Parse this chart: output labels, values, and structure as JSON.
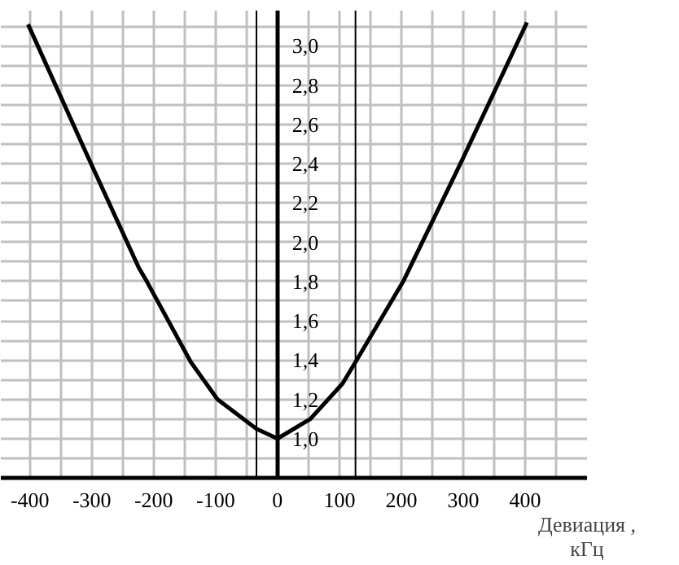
{
  "chart_data": {
    "type": "line",
    "xlabel": "Девиация ,\nкГц",
    "series": [
      {
        "color": "#000000",
        "x": [
          -403,
          -307,
          -224,
          -211,
          -140,
          -97,
          -34,
          0,
          53,
          105,
          126,
          203,
          297,
          403
        ],
        "values": [
          3.11,
          2.44,
          1.87,
          1.8,
          1.39,
          1.2,
          1.05,
          1.0,
          1.1,
          1.28,
          1.39,
          1.8,
          2.41,
          3.12
        ]
      }
    ],
    "xlim": [
      -447,
      500
    ],
    "ylim": [
      0.8,
      3.18
    ],
    "xticks": [
      -400,
      {
        "value": -350,
        "label": null
      },
      -300,
      {
        "value": -250,
        "label": null
      },
      -200,
      {
        "value": -150,
        "label": null
      },
      -100,
      {
        "value": -50,
        "label": null
      },
      0,
      {
        "value": 50,
        "label": null
      },
      100,
      {
        "value": 150,
        "label": null
      },
      200,
      {
        "value": 250,
        "label": null
      },
      300,
      {
        "value": 350,
        "label": null
      },
      400,
      {
        "value": 450,
        "label": null
      }
    ],
    "yticks": [
      {
        "value": 0.9,
        "label": null
      },
      {
        "value": 1.0,
        "label": "1,0"
      },
      {
        "value": 1.1,
        "label": null
      },
      {
        "value": 1.2,
        "label": "1,2"
      },
      {
        "value": 1.3,
        "label": null
      },
      {
        "value": 1.4,
        "label": "1,4"
      },
      {
        "value": 1.5,
        "label": null
      },
      {
        "value": 1.6,
        "label": "1,6"
      },
      {
        "value": 1.7,
        "label": null
      },
      {
        "value": 1.8,
        "label": "1,8"
      },
      {
        "value": 1.9,
        "label": null
      },
      {
        "value": 2.0,
        "label": "2,0"
      },
      {
        "value": 2.1,
        "label": null
      },
      {
        "value": 2.2,
        "label": "2,2"
      },
      {
        "value": 2.3,
        "label": null
      },
      {
        "value": 2.4,
        "label": "2,4"
      },
      {
        "value": 2.5,
        "label": null
      },
      {
        "value": 2.6,
        "label": "2,6"
      },
      {
        "value": 2.7,
        "label": null
      },
      {
        "value": 2.8,
        "label": "2,8"
      },
      {
        "value": 2.9,
        "label": null
      },
      {
        "value": 3.0,
        "label": "3,0"
      },
      {
        "value": 3.1,
        "label": null
      }
    ],
    "ref_lines": [
      {
        "axis": "x",
        "value": -34,
        "color": "#000000"
      },
      {
        "axis": "x",
        "value": 126,
        "color": "#000000"
      }
    ],
    "grid": true,
    "marker": "none",
    "line_style": "solid"
  }
}
